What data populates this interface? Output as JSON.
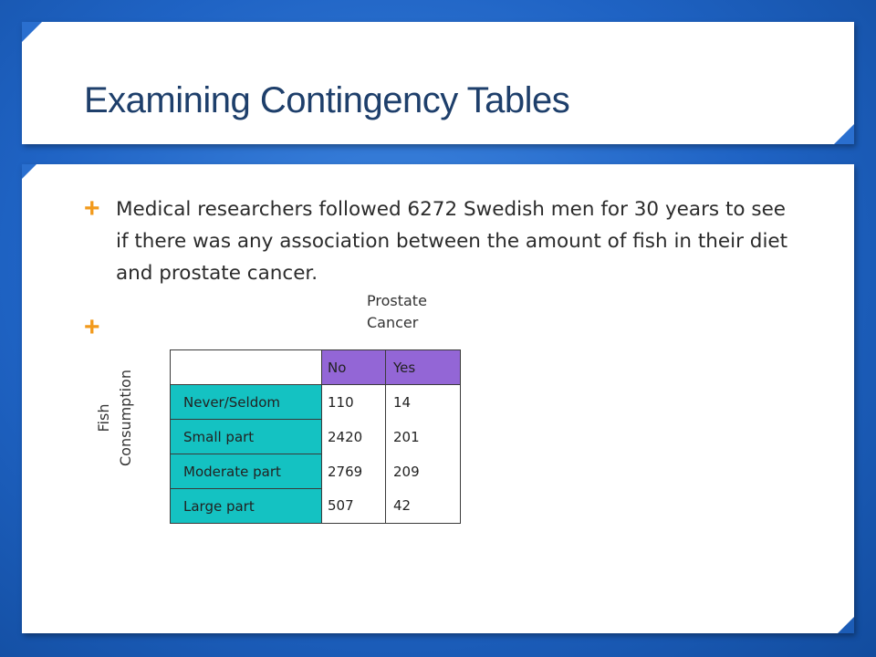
{
  "slide": {
    "title": "Examining Contingency Tables",
    "bullets": [
      "Medical researchers followed 6272 Swedish men for 30 years to see if there was any association between the amount of fish in their diet and prostate cancer.",
      ""
    ],
    "bullet_symbol": "+",
    "colors": {
      "background": "#2a6fcf",
      "title": "#1e3f6b",
      "bullet": "#f29a1c",
      "header_fill": "#9366d6",
      "row_label_fill": "#14c2c2"
    }
  },
  "table": {
    "column_group_label_line1": "Prostate",
    "column_group_label_line2": "Cancer",
    "row_group_label_line1": "Fish",
    "row_group_label_line2": "Consumption",
    "headers": [
      "",
      "No",
      "Yes"
    ],
    "rows": [
      {
        "label": "Never/Seldom",
        "no": "110",
        "yes": "14"
      },
      {
        "label": "Small part",
        "no": "2420",
        "yes": "201"
      },
      {
        "label": "Moderate part",
        "no": "2769",
        "yes": "209"
      },
      {
        "label": "Large part",
        "no": "507",
        "yes": "42"
      }
    ]
  }
}
